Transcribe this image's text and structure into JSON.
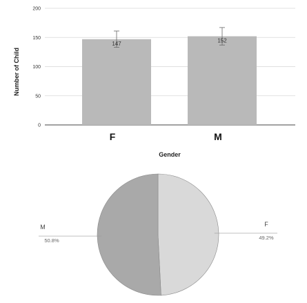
{
  "chart_data": [
    {
      "type": "bar",
      "categories": [
        "F",
        "M"
      ],
      "values": [
        147,
        152
      ],
      "error": [
        14,
        15
      ],
      "data_labels": [
        "147",
        "152"
      ],
      "xlabel": "Gender",
      "ylabel": "Number of Child",
      "ylim": [
        0,
        200
      ],
      "yticks": [
        0,
        50,
        100,
        150,
        200
      ],
      "grid": true,
      "bar_color": "#b9b9b9"
    },
    {
      "type": "pie",
      "labels": [
        "F",
        "M"
      ],
      "values": [
        49.2,
        50.8
      ],
      "percent_labels": [
        "49.2%",
        "50.8%"
      ],
      "colors": [
        "#d9d9d9",
        "#a9a9a9"
      ]
    }
  ]
}
